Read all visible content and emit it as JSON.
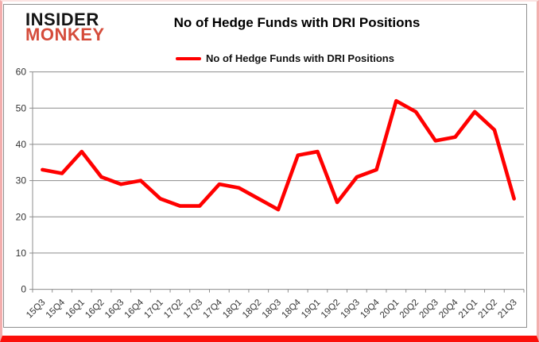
{
  "logo": {
    "line1": "INSIDER",
    "line2": "MONKEY"
  },
  "header": {
    "title": "No of Hedge Funds with DRI Positions"
  },
  "legend": {
    "label": "No of Hedge Funds with DRI Positions"
  },
  "colors": {
    "line": "#ff0000",
    "logo_black": "#141414",
    "logo_red": "#d54c3b",
    "grid": "#8c8c8c",
    "axis": "#8c8c8c",
    "tick_text": "#333333",
    "frame_pink": "#f3aead",
    "frame_red": "#fb0f0a",
    "container_border": "#909090"
  },
  "chart_data": {
    "type": "line",
    "title": "No of Hedge Funds with DRI Positions",
    "categories": [
      "15Q3",
      "15Q4",
      "16Q1",
      "16Q2",
      "16Q3",
      "16Q4",
      "17Q1",
      "17Q2",
      "17Q3",
      "17Q4",
      "18Q1",
      "18Q2",
      "18Q3",
      "18Q4",
      "19Q1",
      "19Q2",
      "19Q3",
      "19Q4",
      "20Q1",
      "20Q2",
      "20Q3",
      "20Q4",
      "21Q1",
      "21Q2",
      "21Q3"
    ],
    "series": [
      {
        "name": "No of Hedge Funds with DRI Positions",
        "color": "#ff0000",
        "values": [
          33,
          32,
          38,
          31,
          29,
          30,
          25,
          23,
          23,
          29,
          28,
          25,
          22,
          37,
          38,
          24,
          31,
          33,
          52,
          49,
          41,
          42,
          49,
          44,
          25
        ]
      }
    ],
    "xlabel": "",
    "ylabel": "",
    "ylim": [
      0,
      60
    ],
    "yticks": [
      0,
      10,
      20,
      30,
      40,
      50,
      60
    ],
    "grid": true,
    "legend_position": "top-center"
  }
}
